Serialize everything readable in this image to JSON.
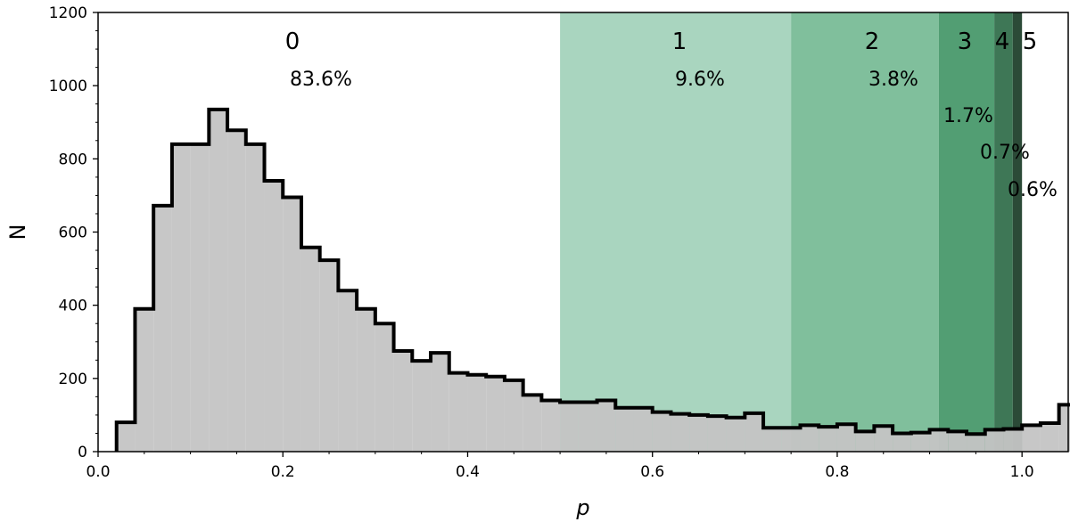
{
  "chart_data": {
    "type": "bar",
    "xlabel": "p",
    "ylabel": "N",
    "xlim": [
      0.0,
      1.05
    ],
    "ylim": [
      0,
      1200
    ],
    "xticks": [
      "0.0",
      "0.2",
      "0.4",
      "0.6",
      "0.8",
      "1.0"
    ],
    "yticks": [
      "0",
      "200",
      "400",
      "600",
      "800",
      "1000",
      "1200"
    ],
    "histogram": {
      "bin_width": 0.02,
      "edges_start": 0.02,
      "counts": [
        80,
        390,
        672,
        840,
        840,
        935,
        878,
        840,
        740,
        695,
        558,
        523,
        440,
        390,
        350,
        275,
        248,
        270,
        215,
        210,
        205,
        195,
        155,
        140,
        135,
        135,
        140,
        120,
        120,
        108,
        103,
        100,
        97,
        93,
        105,
        65,
        65,
        72,
        68,
        75,
        55,
        70,
        50,
        52,
        60,
        55,
        48,
        60,
        62,
        72,
        78,
        128
      ],
      "fill_color": "#c4c4c4",
      "line_color": "#000000"
    },
    "regions": [
      {
        "label": "0",
        "percent": "83.6%",
        "x0": 0.0,
        "x1": 0.5,
        "color": "#ffffff"
      },
      {
        "label": "1",
        "percent": "9.6%",
        "x0": 0.5,
        "x1": 0.75,
        "color": "#a9d5bf"
      },
      {
        "label": "2",
        "percent": "3.8%",
        "x0": 0.75,
        "x1": 0.91,
        "color": "#80bf9c"
      },
      {
        "label": "3",
        "percent": "1.7%",
        "x0": 0.91,
        "x1": 0.97,
        "color": "#529e73"
      },
      {
        "label": "4",
        "percent": "0.7%",
        "x0": 0.97,
        "x1": 0.99,
        "color": "#3e7756"
      },
      {
        "label": "5",
        "percent": "0.6%",
        "x0": 0.99,
        "x1": 1.0,
        "color": "#2b4a37"
      }
    ]
  }
}
